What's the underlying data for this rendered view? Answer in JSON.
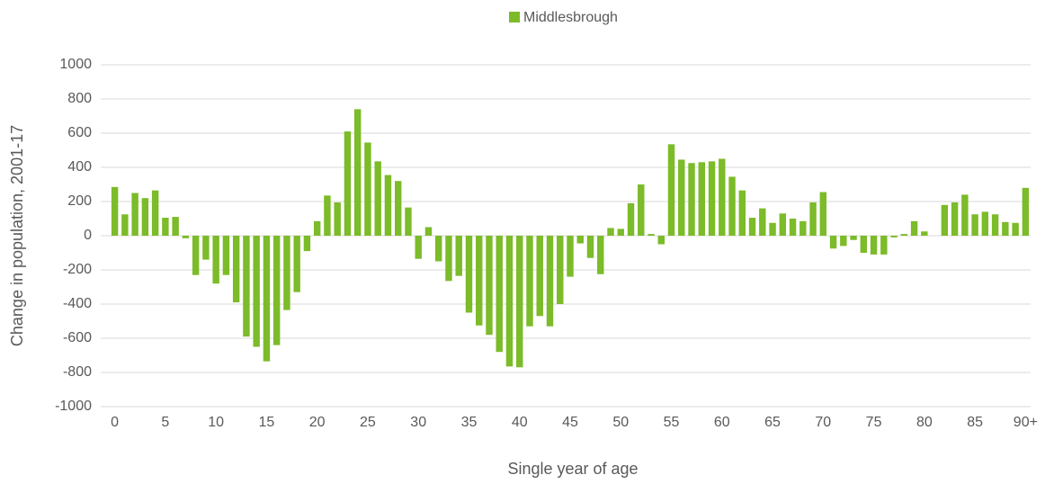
{
  "chart_data": {
    "type": "bar",
    "x_label": "Single year of age",
    "y_label": "Change in population, 2001-17",
    "categories": [
      "0",
      null,
      null,
      null,
      null,
      "5",
      null,
      null,
      null,
      null,
      "10",
      null,
      null,
      null,
      null,
      "15",
      null,
      null,
      null,
      null,
      "20",
      null,
      null,
      null,
      null,
      "25",
      null,
      null,
      null,
      null,
      "30",
      null,
      null,
      null,
      null,
      "35",
      null,
      null,
      null,
      null,
      "40",
      null,
      null,
      null,
      null,
      "45",
      null,
      null,
      null,
      null,
      "50",
      null,
      null,
      null,
      null,
      "55",
      null,
      null,
      null,
      null,
      "60",
      null,
      null,
      null,
      null,
      "65",
      null,
      null,
      null,
      null,
      "70",
      null,
      null,
      null,
      null,
      "75",
      null,
      null,
      null,
      null,
      "80",
      null,
      null,
      null,
      null,
      "85",
      null,
      null,
      null,
      null,
      "90+"
    ],
    "series": [
      {
        "name": "Middlesbrough",
        "color": "#7cbb29",
        "values": [
          285,
          125,
          250,
          220,
          265,
          105,
          110,
          -15,
          -230,
          -140,
          -280,
          -230,
          -390,
          -590,
          -650,
          -735,
          -640,
          -435,
          -330,
          -90,
          85,
          235,
          195,
          610,
          740,
          545,
          435,
          355,
          320,
          165,
          -135,
          50,
          -150,
          -265,
          -235,
          -450,
          -525,
          -580,
          -680,
          -765,
          -770,
          -530,
          -470,
          -530,
          -400,
          -240,
          -45,
          -130,
          -225,
          45,
          40,
          190,
          300,
          10,
          -50,
          535,
          445,
          425,
          430,
          435,
          450,
          345,
          265,
          105,
          160,
          75,
          130,
          100,
          85,
          195,
          255,
          -75,
          -60,
          -25,
          -100,
          -110,
          -110,
          -10,
          10,
          85,
          25,
          0,
          180,
          195,
          240,
          125,
          140,
          125,
          80,
          75,
          280
        ]
      }
    ],
    "ylim": [
      -1000,
      1000
    ],
    "yticks": [
      -1000,
      -800,
      -600,
      -400,
      -200,
      0,
      200,
      400,
      600,
      800,
      1000
    ],
    "grid": true,
    "legend": "top"
  }
}
